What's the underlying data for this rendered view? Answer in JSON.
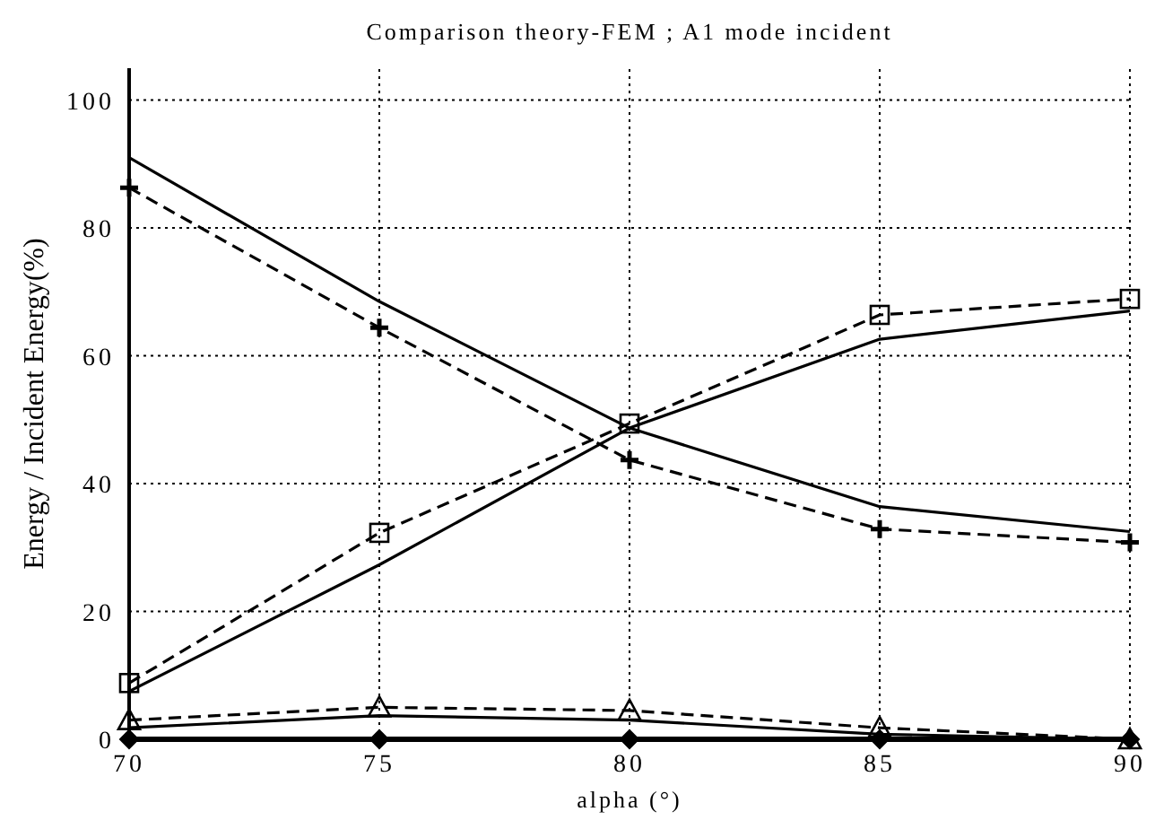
{
  "chart_data": {
    "type": "line",
    "title": "Comparison theory-FEM ;  A1 mode incident",
    "xlabel": "alpha (°)",
    "ylabel": "Energy / Incident Energy(%)",
    "x": [
      70,
      75,
      80,
      85,
      90
    ],
    "series": [
      {
        "color": "#000000",
        "line_style": "solid",
        "marker": "none",
        "values": [
          91,
          68.5,
          48.7,
          36.4,
          32.5
        ]
      },
      {
        "color": "#000000",
        "line_style": "dashed",
        "marker": "cross",
        "values": [
          86.3,
          64.4,
          43.7,
          32.9,
          30.8
        ]
      },
      {
        "color": "#000000",
        "line_style": "solid",
        "marker": "none",
        "values": [
          7.5,
          27.3,
          48.7,
          62.6,
          67
        ]
      },
      {
        "color": "#000000",
        "line_style": "dashed",
        "marker": "square",
        "values": [
          8.8,
          32.3,
          49.4,
          66.4,
          68.9
        ]
      },
      {
        "color": "#000000",
        "line_style": "solid",
        "marker": "none",
        "values": [
          1.8,
          3.7,
          3,
          0.8,
          0
        ]
      },
      {
        "color": "#000000",
        "line_style": "dashed",
        "marker": "triangle",
        "values": [
          3,
          5,
          4.5,
          1.8,
          0
        ]
      },
      {
        "color": "#000000",
        "line_style": "solid",
        "marker": "diamond",
        "values": [
          0,
          0,
          0,
          0,
          0
        ]
      }
    ],
    "xlim": [
      70,
      90
    ],
    "xticks": [
      70,
      75,
      80,
      85,
      90
    ],
    "ylim": [
      0,
      105
    ],
    "yticks": [
      0,
      20,
      40,
      60,
      80,
      100
    ],
    "grid": true
  }
}
